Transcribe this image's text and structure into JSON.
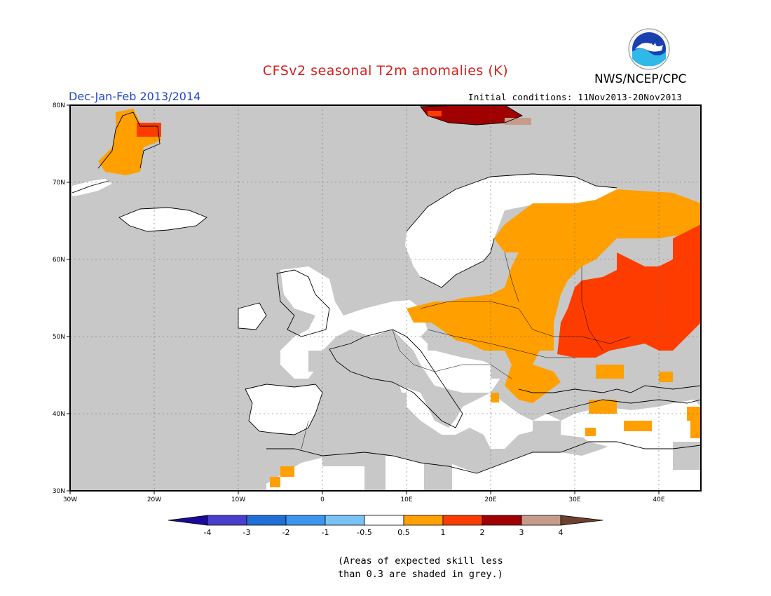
{
  "header": {
    "title": "CFSv2 seasonal T2m anomalies (K)",
    "period": "Dec-Jan-Feb 2013/2014",
    "agency": "NWS/NCEP/CPC",
    "initial_conditions": "Initial conditions: 11Nov2013-20Nov2013",
    "logo_text": "NOAA"
  },
  "map": {
    "region": "Europe",
    "lon_range": [
      -30,
      45
    ],
    "lat_range": [
      30,
      80
    ],
    "lon_ticks": [
      "30W",
      "20W",
      "10W",
      "0",
      "10E",
      "20E",
      "30E",
      "40E"
    ],
    "lat_ticks": [
      "80N",
      "70N",
      "60N",
      "50N",
      "40N",
      "30N"
    ],
    "grid": true,
    "background_color": "#c8c8c8",
    "anomaly_regions": [
      {
        "name": "scandinavia-west-europe",
        "category": "-0.5 to 0.5",
        "color": "#ffffff"
      },
      {
        "name": "eastern-europe",
        "category": "0.5 to 1",
        "color": "#ff9f00"
      },
      {
        "name": "western-russia",
        "category": "1 to 2",
        "color": "#ff3c00"
      },
      {
        "name": "svalbard",
        "category": "2 to 3",
        "color": "#a00000"
      },
      {
        "name": "greenland-east",
        "category": "0.5 to 1",
        "color": "#ff9f00"
      }
    ]
  },
  "colorbar": {
    "colors": [
      "#1a0a9a",
      "#4a3ecf",
      "#1f6fd6",
      "#3c96ee",
      "#79c2f5",
      "#ffffff",
      "#ff9f00",
      "#ff3c00",
      "#a00000",
      "#c79b8c",
      "#6e4030"
    ],
    "labels": [
      "-4",
      "-3",
      "-2",
      "-1",
      "-0.5",
      "0.5",
      "1",
      "2",
      "3",
      "4"
    ]
  },
  "footnote": {
    "line1": "(Areas of expected skill less",
    "line2": "than 0.3 are shaded in grey.)"
  }
}
